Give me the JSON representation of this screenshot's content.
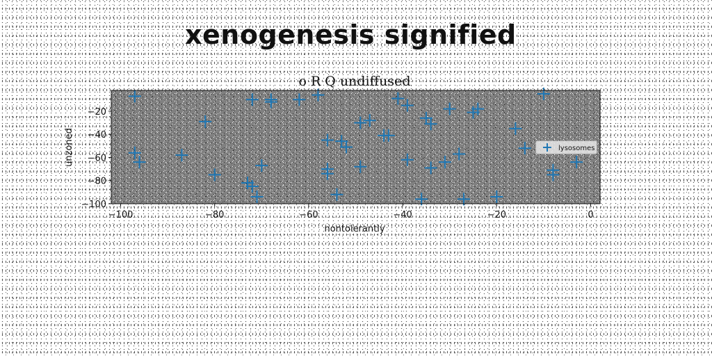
{
  "headline": "xenogenesis signified",
  "chart_data": {
    "type": "scatter",
    "title": "o R Q undiffused",
    "xlabel": "nontolerantly",
    "ylabel": "unzoned",
    "xlim": [
      -102,
      2
    ],
    "ylim": [
      -100,
      -2
    ],
    "xticks": [
      -100,
      -80,
      -60,
      -40,
      -20,
      0
    ],
    "yticks": [
      -20,
      -40,
      -60,
      -80,
      -100
    ],
    "xtick_labels": [
      "−100",
      "−80",
      "−60",
      "−40",
      "−20",
      "0"
    ],
    "ytick_labels": [
      "−20",
      "−40",
      "−60",
      "−80",
      "−100"
    ],
    "grid": false,
    "legend_position": "center-right",
    "marker": "+",
    "plot_background": "#808080",
    "series": [
      {
        "name": "lysosomes",
        "color": "#1f77b4",
        "points": [
          [
            -97,
            -7
          ],
          [
            -97,
            -56
          ],
          [
            -96,
            -64
          ],
          [
            -87,
            -58
          ],
          [
            -82,
            -29
          ],
          [
            -80,
            -75
          ],
          [
            -73,
            -82
          ],
          [
            -72,
            -85
          ],
          [
            -71,
            -94
          ],
          [
            -72,
            -10
          ],
          [
            -70,
            -67
          ],
          [
            -68,
            -12
          ],
          [
            -68,
            -10
          ],
          [
            -62,
            -10
          ],
          [
            -58,
            -6
          ],
          [
            -56,
            -45
          ],
          [
            -56,
            -74
          ],
          [
            -56,
            -70
          ],
          [
            -54,
            -92
          ],
          [
            -53,
            -46
          ],
          [
            -52,
            -51
          ],
          [
            -49,
            -30
          ],
          [
            -49,
            -68
          ],
          [
            -47,
            -28
          ],
          [
            -44,
            -41
          ],
          [
            -43,
            -41
          ],
          [
            -41,
            -9
          ],
          [
            -39,
            -15
          ],
          [
            -39,
            -62
          ],
          [
            -35,
            -26
          ],
          [
            -34,
            -31
          ],
          [
            -34,
            -69
          ],
          [
            -36,
            -96
          ],
          [
            -31,
            -64
          ],
          [
            -30,
            -18
          ],
          [
            -27,
            -96
          ],
          [
            -28,
            -57
          ],
          [
            -25,
            -21
          ],
          [
            -24,
            -18
          ],
          [
            -20,
            -94
          ],
          [
            -16,
            -35
          ],
          [
            -14,
            -52
          ],
          [
            -10,
            -5
          ],
          [
            -8,
            -71
          ],
          [
            -8,
            -75
          ],
          [
            -3,
            -64
          ]
        ]
      }
    ]
  }
}
